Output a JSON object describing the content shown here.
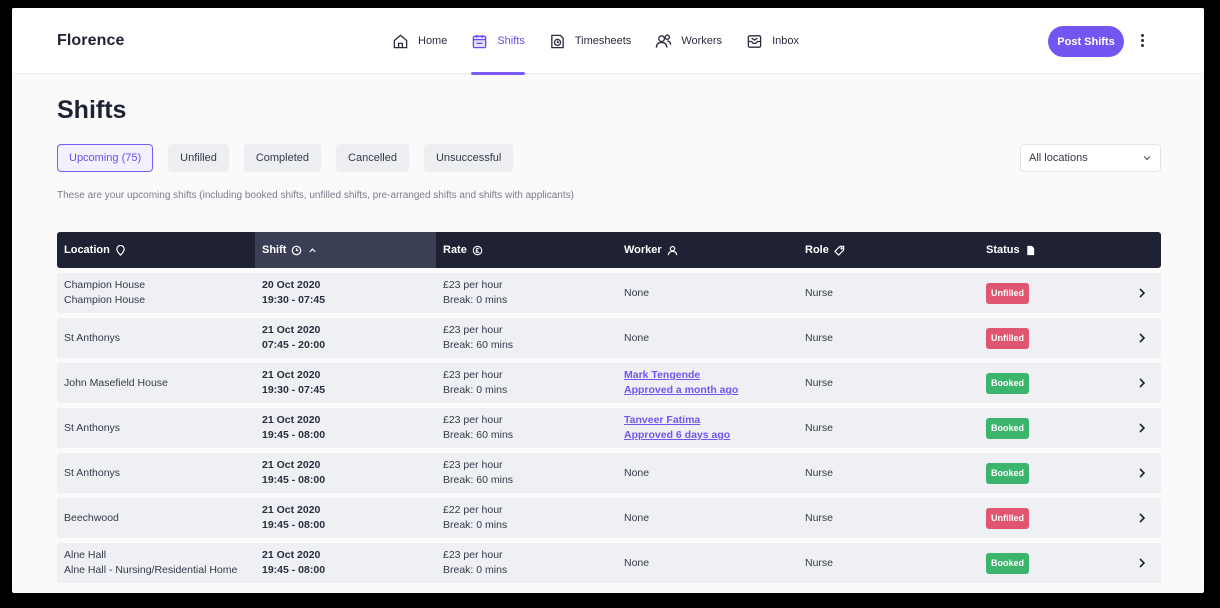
{
  "header": {
    "brand": "Florence",
    "nav": [
      {
        "label": "Home",
        "icon": "home-icon"
      },
      {
        "label": "Shifts",
        "icon": "calendar-icon",
        "active": true
      },
      {
        "label": "Timesheets",
        "icon": "timesheet-icon"
      },
      {
        "label": "Workers",
        "icon": "workers-icon"
      },
      {
        "label": "Inbox",
        "icon": "inbox-icon"
      }
    ],
    "post_button": "Post Shifts"
  },
  "page": {
    "title": "Shifts",
    "tabs": [
      {
        "label": "Upcoming (75)",
        "active": true
      },
      {
        "label": "Unfilled"
      },
      {
        "label": "Completed"
      },
      {
        "label": "Cancelled"
      },
      {
        "label": "Unsuccessful"
      }
    ],
    "location_select": "All locations",
    "subtitle": "These are your upcoming shifts (including booked shifts, unfilled shifts, pre-arranged shifts and shifts with applicants)"
  },
  "table": {
    "headers": [
      "Location",
      "Shift",
      "Rate",
      "Worker",
      "Role",
      "Status"
    ],
    "rows": [
      {
        "loc1": "Champion House",
        "loc2": "Champion House",
        "date": "20 Oct 2020",
        "time": "19:30 - 07:45",
        "rate": "£23 per hour",
        "brk": "Break: 0 mins",
        "worker": "None",
        "worker_sub": "",
        "role": "Nurse",
        "status": "Unfilled"
      },
      {
        "loc1": "St Anthonys",
        "loc2": "",
        "date": "21 Oct 2020",
        "time": "07:45 - 20:00",
        "rate": "£23 per hour",
        "brk": "Break: 60 mins",
        "worker": "None",
        "worker_sub": "",
        "role": "Nurse",
        "status": "Unfilled"
      },
      {
        "loc1": "John Masefield House",
        "loc2": "",
        "date": "21 Oct 2020",
        "time": "19:30 - 07:45",
        "rate": "£23 per hour",
        "brk": "Break: 0 mins",
        "worker": "Mark Tengende",
        "worker_sub": "Approved a month ago",
        "role": "Nurse",
        "status": "Booked"
      },
      {
        "loc1": "St Anthonys",
        "loc2": "",
        "date": "21 Oct 2020",
        "time": "19:45 - 08:00",
        "rate": "£23 per hour",
        "brk": "Break: 60 mins",
        "worker": "Tanveer Fatima",
        "worker_sub": "Approved 6 days ago",
        "role": "Nurse",
        "status": "Booked"
      },
      {
        "loc1": "St Anthonys",
        "loc2": "",
        "date": "21 Oct 2020",
        "time": "19:45 - 08:00",
        "rate": "£23 per hour",
        "brk": "Break: 60 mins",
        "worker": "None",
        "worker_sub": "",
        "role": "Nurse",
        "status": "Booked"
      },
      {
        "loc1": "Beechwood",
        "loc2": "",
        "date": "21 Oct 2020",
        "time": "19:45 - 08:00",
        "rate": "£22 per hour",
        "brk": "Break: 0 mins",
        "worker": "None",
        "worker_sub": "",
        "role": "Nurse",
        "status": "Unfilled"
      },
      {
        "loc1": "Alne Hall",
        "loc2": "Alne Hall - Nursing/Residential Home",
        "date": "21 Oct 2020",
        "time": "19:45 - 08:00",
        "rate": "£23 per hour",
        "brk": "Break: 0 mins",
        "worker": "None",
        "worker_sub": "",
        "role": "Nurse",
        "status": "Booked"
      }
    ]
  },
  "colors": {
    "accent": "#7355f2",
    "header_dark": "#1f2233",
    "unfilled": "#e0556f",
    "booked": "#3bb56b"
  }
}
